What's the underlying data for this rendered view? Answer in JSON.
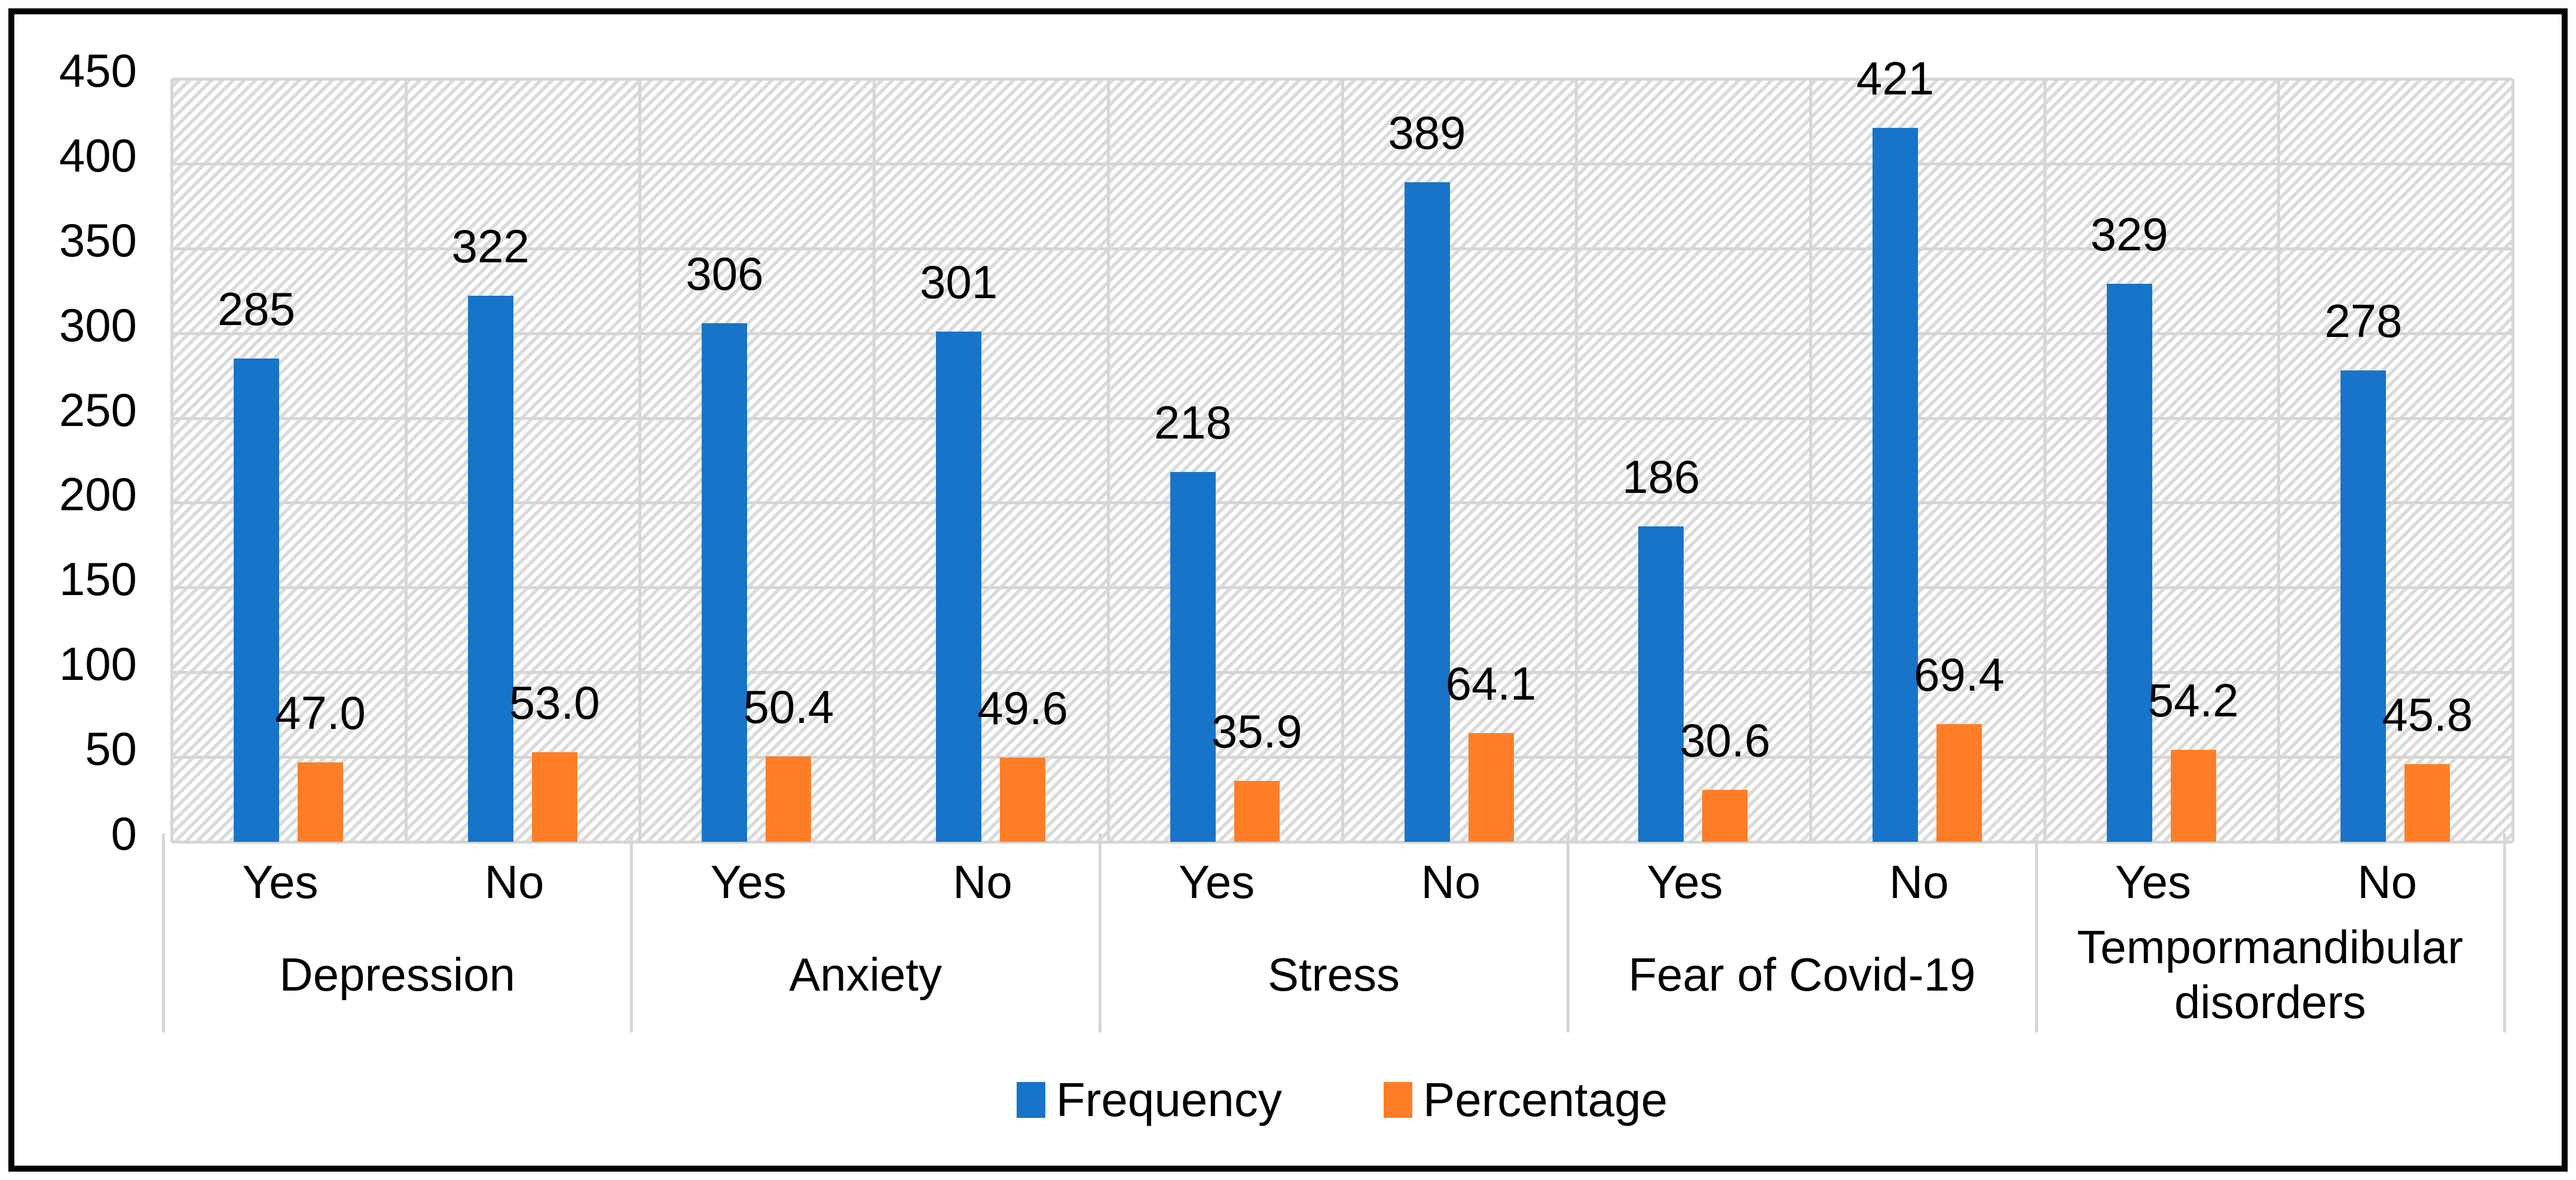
{
  "chart_data": {
    "type": "bar",
    "title": "",
    "xlabel": "",
    "ylabel": "",
    "y_axis": {
      "min": 0,
      "max": 450,
      "step": 50,
      "tick_labels": [
        "450",
        "400",
        "350",
        "300",
        "250",
        "200",
        "150",
        "100",
        "50",
        "0"
      ]
    },
    "grid": true,
    "legend_position": "bottom",
    "plot_background": "light-diagonal-hatch",
    "series": [
      {
        "name": "Frequency",
        "color": "#1874C9",
        "values": [
          285,
          322,
          306,
          301,
          218,
          389,
          186,
          421,
          329,
          278
        ]
      },
      {
        "name": "Percentage",
        "color": "#FD7E27",
        "values": [
          47.0,
          53.0,
          50.4,
          49.6,
          35.9,
          64.1,
          30.6,
          69.4,
          54.2,
          45.8
        ]
      }
    ],
    "groups": [
      {
        "label": "Depression",
        "cells": [
          {
            "x_label": "Yes",
            "frequency": 285,
            "frequency_label": "285",
            "percentage": 47.0,
            "percentage_label": "47.0"
          },
          {
            "x_label": "No",
            "frequency": 322,
            "frequency_label": "322",
            "percentage": 53.0,
            "percentage_label": "53.0"
          }
        ]
      },
      {
        "label": "Anxiety",
        "cells": [
          {
            "x_label": "Yes",
            "frequency": 306,
            "frequency_label": "306",
            "percentage": 50.4,
            "percentage_label": "50.4"
          },
          {
            "x_label": "No",
            "frequency": 301,
            "frequency_label": "301",
            "percentage": 49.6,
            "percentage_label": "49.6"
          }
        ]
      },
      {
        "label": "Stress",
        "cells": [
          {
            "x_label": "Yes",
            "frequency": 218,
            "frequency_label": "218",
            "percentage": 35.9,
            "percentage_label": "35.9"
          },
          {
            "x_label": "No",
            "frequency": 389,
            "frequency_label": "389",
            "percentage": 64.1,
            "percentage_label": "64.1"
          }
        ]
      },
      {
        "label": "Fear of Covid-19",
        "cells": [
          {
            "x_label": "Yes",
            "frequency": 186,
            "frequency_label": "186",
            "percentage": 30.6,
            "percentage_label": "30.6"
          },
          {
            "x_label": "No",
            "frequency": 421,
            "frequency_label": "421",
            "percentage": 69.4,
            "percentage_label": "69.4"
          }
        ]
      },
      {
        "label": "Tempormandibular disorders",
        "cells": [
          {
            "x_label": "Yes",
            "frequency": 329,
            "frequency_label": "329",
            "percentage": 54.2,
            "percentage_label": "54.2"
          },
          {
            "x_label": "No",
            "frequency": 278,
            "frequency_label": "278",
            "percentage": 45.8,
            "percentage_label": "45.8"
          }
        ]
      }
    ]
  },
  "colors": {
    "frequency_bar": "#1874C9",
    "percentage_bar": "#FD7E27",
    "gridline": "#D6D6D6",
    "hatch": "#DBDBDB",
    "text": "#000000",
    "frame_border": "#000000"
  }
}
